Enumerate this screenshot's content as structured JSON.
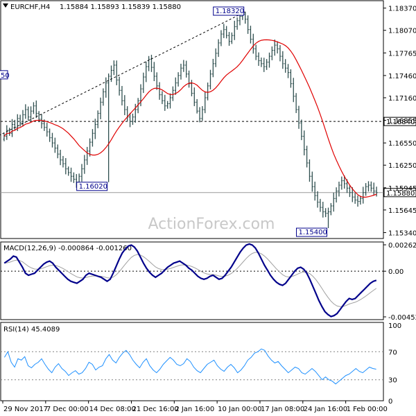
{
  "header": {
    "symbol": "EURCHF,H4",
    "ohlc": "1.15884 1.15893 1.15839 1.15880"
  },
  "watermark": "ActionForex.com",
  "price_panel": {
    "axis_ticks": [
      "1.18370",
      "1.18070",
      "1.17765",
      "1.17460",
      "1.17160",
      "1.16855",
      "1.16550",
      "1.16250",
      "1.15945",
      "1.15645",
      "1.15340"
    ],
    "axis_tick_values": [
      1.1837,
      1.1807,
      1.17765,
      1.1746,
      1.1716,
      1.16855,
      1.1655,
      1.1625,
      1.15945,
      1.15645,
      1.1534
    ],
    "ylim": [
      1.1526,
      1.1847
    ],
    "horizontal_level": {
      "label": "1.16840",
      "value": 1.1684
    },
    "current_price": {
      "label": "1.15880",
      "value": 1.1588
    },
    "left_cut_label": "50",
    "annotations": [
      {
        "label": "1.18320",
        "value": 1.1832,
        "x_index": 90
      },
      {
        "label": "1.16020",
        "value": 1.1602,
        "x_index": 39
      },
      {
        "label": "1.15400",
        "value": 1.154,
        "x_index": 121
      }
    ],
    "trendline": {
      "from": {
        "x_index": -2,
        "value": 1.1665
      },
      "to": {
        "x_index": 90,
        "value": 1.1832
      }
    }
  },
  "macd_panel": {
    "title": "MACD(12,26,9) -0.000864 -0.001260",
    "axis_ticks": [
      "0.00262",
      "0.00",
      "-0.004526"
    ],
    "axis_tick_values": [
      0.00262,
      0.0,
      -0.004526
    ],
    "ylim": [
      -0.0048,
      0.0029
    ]
  },
  "rsi_panel": {
    "title": "RSI(14) 45.4089",
    "axis_ticks": [
      "100",
      "70",
      "30",
      "0"
    ],
    "axis_tick_values": [
      100,
      70,
      30,
      0
    ],
    "levels": [
      70,
      30
    ]
  },
  "x_axis_labels": [
    "29 Nov 2017",
    "7 Dec 00:00",
    "14 Dec 08:00",
    "21 Dec 16:00",
    "2 Jan 16:00",
    "10 Jan 00:00",
    "17 Jan 08:00",
    "24 Jan 16:00",
    "1 Feb 00:00"
  ],
  "x_axis_label_index": [
    0,
    16,
    32,
    48,
    64,
    80,
    96,
    112,
    128
  ],
  "colors": {
    "bars": "#2f4f4f",
    "ma": "#e00000",
    "macd": "#00008b",
    "signal": "#a0a0a0",
    "rsi": "#1e90ff",
    "levels": "#808080",
    "border": "#000000"
  },
  "chart_data": {
    "type": "ohlc",
    "title": "EURCHF,H4",
    "series": [
      {
        "name": "EURCHF,H4",
        "close": [
          1.1664,
          1.1672,
          1.1668,
          1.168,
          1.1676,
          1.1688,
          1.1682,
          1.1693,
          1.17,
          1.169,
          1.1698,
          1.1705,
          1.1695,
          1.1687,
          1.1681,
          1.1676,
          1.167,
          1.1662,
          1.1655,
          1.1648,
          1.164,
          1.1632,
          1.1627,
          1.162,
          1.1615,
          1.161,
          1.1606,
          1.1602,
          1.161,
          1.162,
          1.1632,
          1.1644,
          1.1656,
          1.1668,
          1.168,
          1.1695,
          1.171,
          1.1724,
          1.1736,
          1.1745,
          1.1753,
          1.176,
          1.174,
          1.1726,
          1.1712,
          1.17,
          1.169,
          1.1684,
          1.169,
          1.17,
          1.1712,
          1.1728,
          1.1744,
          1.1758,
          1.1768,
          1.1757,
          1.1745,
          1.1732,
          1.172,
          1.1712,
          1.1705,
          1.1708,
          1.1716,
          1.1726,
          1.1736,
          1.1746,
          1.1756,
          1.176,
          1.1748,
          1.1735,
          1.1722,
          1.171,
          1.1698,
          1.1688,
          1.17,
          1.1716,
          1.1732,
          1.1748,
          1.1762,
          1.1776,
          1.179,
          1.1802,
          1.1808,
          1.18,
          1.1792,
          1.18,
          1.1812,
          1.182,
          1.1826,
          1.1829,
          1.1822,
          1.1808,
          1.1795,
          1.1782,
          1.1772,
          1.1766,
          1.1762,
          1.1758,
          1.1764,
          1.1772,
          1.178,
          1.1787,
          1.1782,
          1.1772,
          1.1762,
          1.1756,
          1.175,
          1.1735,
          1.1718,
          1.17,
          1.1682,
          1.1664,
          1.1646,
          1.1628,
          1.161,
          1.1596,
          1.1584,
          1.1575,
          1.1568,
          1.1562,
          1.156,
          1.1562,
          1.157,
          1.158,
          1.159,
          1.1598,
          1.1604,
          1.16,
          1.1594,
          1.1588,
          1.1582,
          1.1578,
          1.1576,
          1.158,
          1.1588,
          1.1596,
          1.1598,
          1.1594,
          1.159,
          1.1588
        ]
      }
    ],
    "macd_series": [
      {
        "name": "MACD(12,26,9)",
        "values": [
          0.0008,
          0.001,
          0.0012,
          0.0015,
          0.0014,
          0.0009,
          0.0004,
          -0.0002,
          -0.0004,
          -0.0003,
          -0.0002,
          0.0001,
          0.0004,
          0.0007,
          0.0009,
          0.001,
          0.0008,
          0.0004,
          0.0001,
          -0.0002,
          -0.0005,
          -0.0008,
          -0.001,
          -0.0011,
          -0.0012,
          -0.001,
          -0.0008,
          -0.0004,
          -0.0002,
          -0.0003,
          -0.0004,
          -0.0005,
          -0.0006,
          -0.0008,
          -0.001,
          -0.0008,
          -0.0002,
          0.0005,
          0.0012,
          0.0018,
          0.0022,
          0.0025,
          0.0026,
          0.0024,
          0.002,
          0.0014,
          0.0008,
          0.0003,
          -0.0001,
          -0.0004,
          -0.0006,
          -0.0004,
          -0.0002,
          0.0001,
          0.0004,
          0.0006,
          0.0008,
          0.0009,
          0.001,
          0.0008,
          0.0006,
          0.0003,
          0.0001,
          -0.0002,
          -0.0005,
          -0.0007,
          -0.0008,
          -0.0007,
          -0.0005,
          -0.0004,
          -0.0006,
          -0.0008,
          -0.0007,
          -0.0004,
          0.0,
          0.0004,
          0.0009,
          0.0014,
          0.0019,
          0.0023,
          0.0026,
          0.0027,
          0.0026,
          0.0023,
          0.0018,
          0.0012,
          0.0006,
          0.0001,
          -0.0004,
          -0.0008,
          -0.0011,
          -0.0013,
          -0.0014,
          -0.0012,
          -0.0008,
          -0.0004,
          0.0,
          0.0003,
          0.0004,
          0.0002,
          -0.0002,
          -0.0008,
          -0.0015,
          -0.0022,
          -0.0029,
          -0.0035,
          -0.004,
          -0.0043,
          -0.0045,
          -0.0044,
          -0.0042,
          -0.0038,
          -0.0034,
          -0.003,
          -0.0027,
          -0.0028,
          -0.0027,
          -0.0024,
          -0.0021,
          -0.0018,
          -0.0015,
          -0.0012,
          -0.001,
          -0.0009
        ]
      }
    ],
    "rsi_series": [
      {
        "name": "RSI(14)",
        "values": [
          62,
          70,
          55,
          48,
          60,
          58,
          63,
          50,
          47,
          52,
          55,
          60,
          52,
          45,
          40,
          48,
          53,
          46,
          42,
          36,
          40,
          43,
          38,
          40,
          46,
          55,
          52,
          44,
          48,
          50,
          60,
          66,
          58,
          54,
          62,
          68,
          72,
          66,
          58,
          52,
          47,
          55,
          60,
          50,
          44,
          40,
          45,
          52,
          57,
          62,
          58,
          52,
          50,
          53,
          60,
          56,
          48,
          43,
          40,
          46,
          52,
          55,
          58,
          50,
          45,
          42,
          48,
          52,
          47,
          40,
          44,
          50,
          58,
          62,
          68,
          70,
          74,
          72,
          64,
          58,
          54,
          56,
          50,
          45,
          40,
          44,
          48,
          46,
          40,
          38,
          42,
          46,
          42,
          36,
          30,
          34,
          30,
          28,
          24,
          28,
          32,
          36,
          38,
          42,
          46,
          42,
          40,
          44,
          48,
          46,
          45
        ]
      }
    ]
  }
}
